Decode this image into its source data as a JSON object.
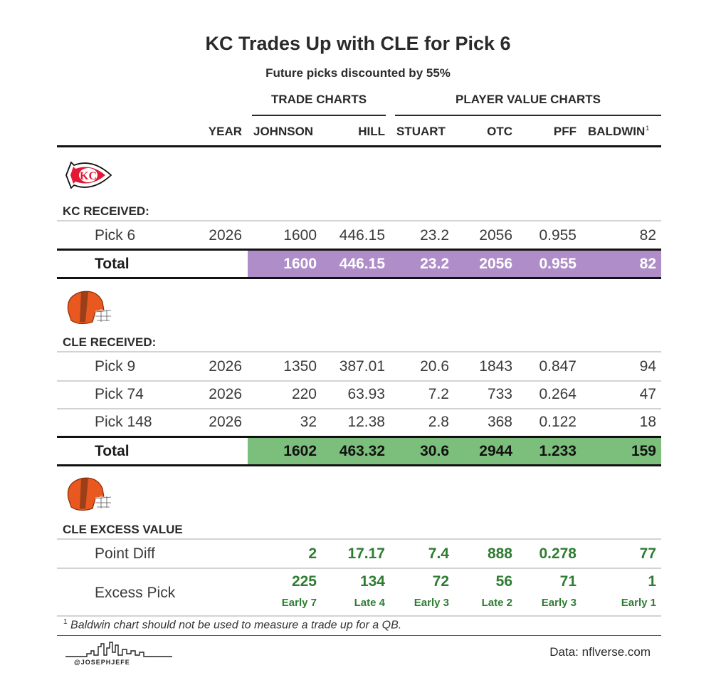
{
  "title": "KC Trades Up with CLE for Pick 6",
  "subtitle": "Future picks discounted by 55%",
  "spanners": {
    "trade_charts": "TRADE CHARTS",
    "player_value_charts": "PLAYER VALUE CHARTS"
  },
  "columns": {
    "year": "YEAR",
    "johnson": "JOHNSON",
    "hill": "HILL",
    "stuart": "STUART",
    "otc": "OTC",
    "pff": "PFF",
    "baldwin": "BALDWIN",
    "baldwin_note": "1"
  },
  "kc": {
    "logo_icon": "kc-chiefs-arrowhead-icon",
    "label": "KC RECEIVED:",
    "rows": [
      {
        "pick": "Pick 6",
        "year": "2026",
        "johnson": "1600",
        "hill": "446.15",
        "stuart": "23.2",
        "otc": "2056",
        "pff": "0.955",
        "baldwin": "82"
      }
    ],
    "total": {
      "label": "Total",
      "johnson": "1600",
      "hill": "446.15",
      "stuart": "23.2",
      "otc": "2056",
      "pff": "0.955",
      "baldwin": "82",
      "fill_color": "#ae8dc8"
    }
  },
  "cle": {
    "logo_icon": "cle-browns-helmet-icon",
    "label": "CLE RECEIVED:",
    "rows": [
      {
        "pick": "Pick 9",
        "year": "2026",
        "johnson": "1350",
        "hill": "387.01",
        "stuart": "20.6",
        "otc": "1843",
        "pff": "0.847",
        "baldwin": "94"
      },
      {
        "pick": "Pick 74",
        "year": "2026",
        "johnson": "220",
        "hill": "63.93",
        "stuart": "7.2",
        "otc": "733",
        "pff": "0.264",
        "baldwin": "47"
      },
      {
        "pick": "Pick 148",
        "year": "2026",
        "johnson": "32",
        "hill": "12.38",
        "stuart": "2.8",
        "otc": "368",
        "pff": "0.122",
        "baldwin": "18"
      }
    ],
    "total": {
      "label": "Total",
      "johnson": "1602",
      "hill": "463.32",
      "stuart": "30.6",
      "otc": "2944",
      "pff": "1.233",
      "baldwin": "159",
      "fill_color": "#7cbf7c"
    }
  },
  "excess": {
    "logo_icon": "cle-browns-helmet-icon",
    "label": "CLE EXCESS VALUE",
    "point_diff": {
      "label": "Point Diff",
      "johnson": "2",
      "hill": "17.17",
      "stuart": "7.4",
      "otc": "888",
      "pff": "0.278",
      "baldwin": "77"
    },
    "excess_pick": {
      "label": "Excess Pick",
      "johnson": "225",
      "johnson_round": "Early 7",
      "hill": "134",
      "hill_round": "Late 4",
      "stuart": "72",
      "stuart_round": "Early 3",
      "otc": "56",
      "otc_round": "Late 2",
      "pff": "71",
      "pff_round": "Early 3",
      "baldwin": "1",
      "baldwin_round": "Early 1"
    },
    "value_color": "#2e7d32"
  },
  "footnote": {
    "mark": "1",
    "text": "Baldwin chart should not be used to measure a trade up for a QB."
  },
  "source": "Data: nflverse.com",
  "handle": "@JOSEPHJEFE",
  "handle_logo_icon": "skyline-icon"
}
